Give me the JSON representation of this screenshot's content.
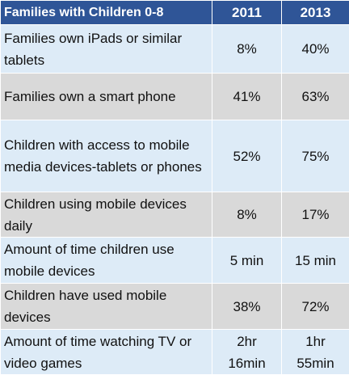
{
  "table": {
    "header": [
      "Families with Children 0-8",
      "2011",
      "2013"
    ],
    "rows": [
      [
        "Families own iPads or similar tablets",
        "8%",
        "40%"
      ],
      [
        "Families own a smart phone",
        "41%",
        "63%"
      ],
      [
        "Children with access to mobile media devices-tablets or phones",
        "52%",
        "75%"
      ],
      [
        "Children using mobile devices daily",
        "8%",
        "17%"
      ],
      [
        "Amount of time children use mobile devices",
        "5 min",
        "15 min"
      ],
      [
        "Children have used mobile devices",
        "38%",
        "72%"
      ],
      [
        "Amount of time watching TV or video games",
        "2hr\n16min",
        "1hr\n55min"
      ]
    ]
  }
}
